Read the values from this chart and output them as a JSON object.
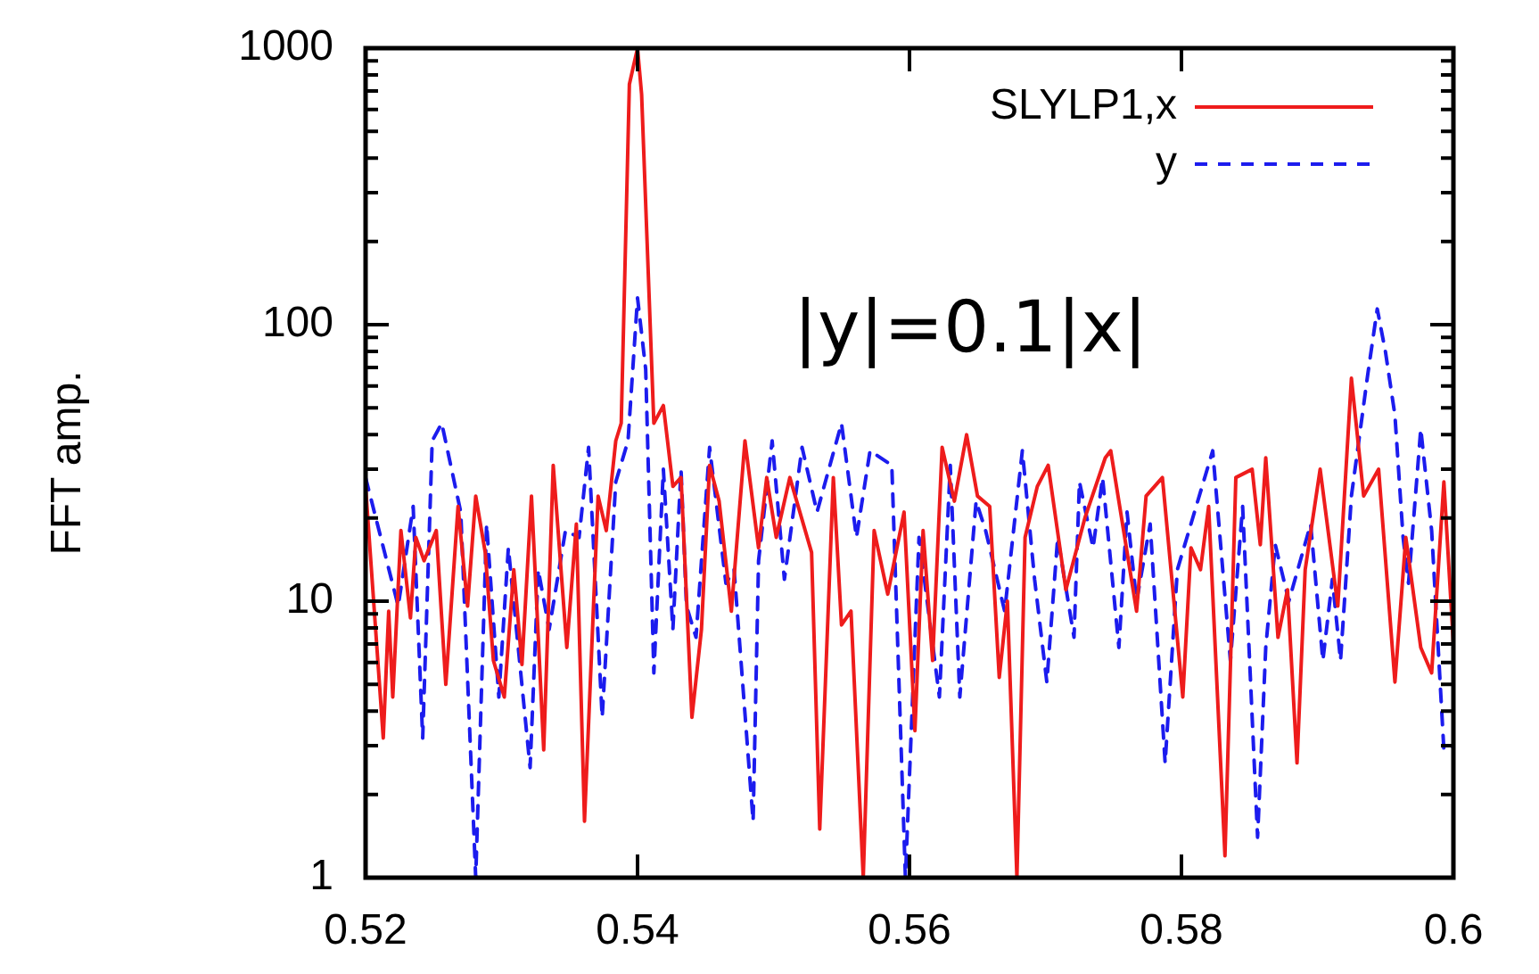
{
  "chart_data": {
    "type": "line",
    "ylabel": "FFT amp.",
    "annotations": [
      "|y|=0.1|x|"
    ],
    "xlim": [
      0.52,
      0.6
    ],
    "xticks": [
      0.52,
      0.54,
      0.56,
      0.58,
      0.6
    ],
    "ylim": [
      1,
      1000
    ],
    "yticks": [
      1,
      {
        "value": 2,
        "label": null
      },
      {
        "value": 3,
        "label": null
      },
      {
        "value": 4,
        "label": null
      },
      {
        "value": 5,
        "label": null
      },
      {
        "value": 6,
        "label": null
      },
      {
        "value": 7,
        "label": null
      },
      {
        "value": 8,
        "label": null
      },
      {
        "value": 9,
        "label": null
      },
      10,
      {
        "value": 20,
        "label": null
      },
      {
        "value": 30,
        "label": null
      },
      {
        "value": 40,
        "label": null
      },
      {
        "value": 50,
        "label": null
      },
      {
        "value": 60,
        "label": null
      },
      {
        "value": 70,
        "label": null
      },
      {
        "value": 80,
        "label": null
      },
      {
        "value": 90,
        "label": null
      },
      100,
      {
        "value": 200,
        "label": null
      },
      {
        "value": 300,
        "label": null
      },
      {
        "value": 400,
        "label": null
      },
      {
        "value": 500,
        "label": null
      },
      {
        "value": 600,
        "label": null
      },
      {
        "value": 700,
        "label": null
      },
      {
        "value": 800,
        "label": null
      },
      {
        "value": 900,
        "label": null
      },
      1000
    ],
    "log": "y",
    "grid": false,
    "legend": "top right",
    "marker": "none",
    "series": [
      {
        "name": "SLYLP1,x",
        "color": "#ee1c1c",
        "line_style": "solid",
        "x": [
          0.52,
          0.5213,
          0.5217,
          0.522,
          0.5226,
          0.5233,
          0.5237,
          0.5243,
          0.5252,
          0.5259,
          0.5268,
          0.5275,
          0.5281,
          0.5288,
          0.5294,
          0.5302,
          0.5309,
          0.5315,
          0.5322,
          0.5331,
          0.5338,
          0.5348,
          0.5355,
          0.5361,
          0.5371,
          0.5377,
          0.5384,
          0.5388,
          0.5394,
          0.54,
          0.5403,
          0.5412,
          0.5419,
          0.5426,
          0.5432,
          0.544,
          0.5447,
          0.5453,
          0.546,
          0.5469,
          0.5479,
          0.5489,
          0.5495,
          0.5502,
          0.5512,
          0.5528,
          0.5534,
          0.5544,
          0.555,
          0.5557,
          0.5566,
          0.5574,
          0.5584,
          0.5596,
          0.5604,
          0.561,
          0.5617,
          0.5624,
          0.5633,
          0.5642,
          0.565,
          0.5659,
          0.5666,
          0.5672,
          0.5679,
          0.5685,
          0.5694,
          0.5702,
          0.5715,
          0.5729,
          0.5744,
          0.5748,
          0.5767,
          0.5774,
          0.5786,
          0.5801,
          0.5807,
          0.5814,
          0.582,
          0.5832,
          0.584,
          0.5852,
          0.5858,
          0.5862,
          0.5871,
          0.5878,
          0.5885,
          0.5891,
          0.5902,
          0.5915,
          0.5925,
          0.5934,
          0.5945,
          0.5957,
          0.5965,
          0.5976,
          0.5984,
          0.5993,
          0.6
        ],
        "values": [
          26,
          3.2,
          9.2,
          4.5,
          18,
          8.7,
          17,
          14,
          18,
          5,
          22,
          9.6,
          24,
          15,
          6.1,
          4.5,
          13,
          5.9,
          24,
          2.9,
          31,
          6.8,
          19,
          1.6,
          24,
          18,
          38,
          44,
          740,
          1000,
          680,
          44,
          51,
          26,
          28,
          3.8,
          7.9,
          31,
          23,
          9.2,
          38,
          15.6,
          28,
          17,
          28,
          15,
          1.5,
          28,
          8.2,
          9.2,
          1,
          18,
          10.6,
          21,
          3.4,
          18,
          6.1,
          36,
          23,
          40,
          24,
          22,
          5.3,
          10,
          1,
          17,
          26,
          31,
          11,
          20,
          33,
          35,
          9.2,
          24,
          28,
          4.5,
          15.6,
          13,
          22,
          1.2,
          28,
          30,
          16,
          33,
          7.4,
          11,
          2.6,
          13,
          30,
          9.6,
          64,
          24,
          30,
          5.1,
          17,
          6.8,
          5.5,
          27,
          7
        ]
      },
      {
        "name": "y",
        "color": "#1c1cee",
        "line_style": "dashed",
        "x": [
          0.52,
          0.5224,
          0.5235,
          0.5242,
          0.5249,
          0.5256,
          0.527,
          0.5281,
          0.5289,
          0.5298,
          0.5305,
          0.5321,
          0.5327,
          0.5335,
          0.5347,
          0.5357,
          0.5364,
          0.5374,
          0.5384,
          0.5393,
          0.54,
          0.5406,
          0.5412,
          0.5419,
          0.5426,
          0.5432,
          0.5436,
          0.5443,
          0.5453,
          0.5465,
          0.5471,
          0.5485,
          0.5489,
          0.5499,
          0.5508,
          0.5521,
          0.5532,
          0.555,
          0.5561,
          0.5571,
          0.5587,
          0.5597,
          0.5607,
          0.5622,
          0.563,
          0.5637,
          0.5649,
          0.5656,
          0.567,
          0.5683,
          0.5692,
          0.5701,
          0.5709,
          0.5721,
          0.5725,
          0.5735,
          0.5742,
          0.5754,
          0.576,
          0.5767,
          0.5777,
          0.5788,
          0.5797,
          0.5823,
          0.5836,
          0.5845,
          0.5856,
          0.5862,
          0.5869,
          0.5879,
          0.5895,
          0.5904,
          0.5911,
          0.5917,
          0.5925,
          0.5937,
          0.5944,
          0.595,
          0.5957,
          0.5963,
          0.5967,
          0.5976,
          0.5984,
          0.5993,
          0.6
        ],
        "values": [
          28,
          9.6,
          22,
          3.2,
          38,
          44,
          21,
          1,
          19,
          4.5,
          15.6,
          2.5,
          13,
          7.9,
          18,
          17,
          36,
          3.8,
          27,
          38,
          125,
          69,
          5.5,
          30,
          7.9,
          30,
          9.6,
          7.4,
          36,
          11.6,
          13,
          1.6,
          14,
          38,
          12,
          36,
          21,
          44,
          17,
          35,
          31,
          1,
          17,
          4.5,
          31,
          4.5,
          23,
          18,
          9.2,
          35,
          12,
          5.1,
          17,
          7.4,
          27,
          15.6,
          28,
          6.8,
          21,
          10,
          19,
          2.6,
          13,
          35,
          6.1,
          22,
          1.4,
          6.8,
          16,
          10,
          19,
          6.1,
          12,
          6.1,
          24,
          66,
          114,
          80,
          47,
          17,
          11.6,
          42,
          18,
          2.9,
          3
        ]
      }
    ]
  }
}
